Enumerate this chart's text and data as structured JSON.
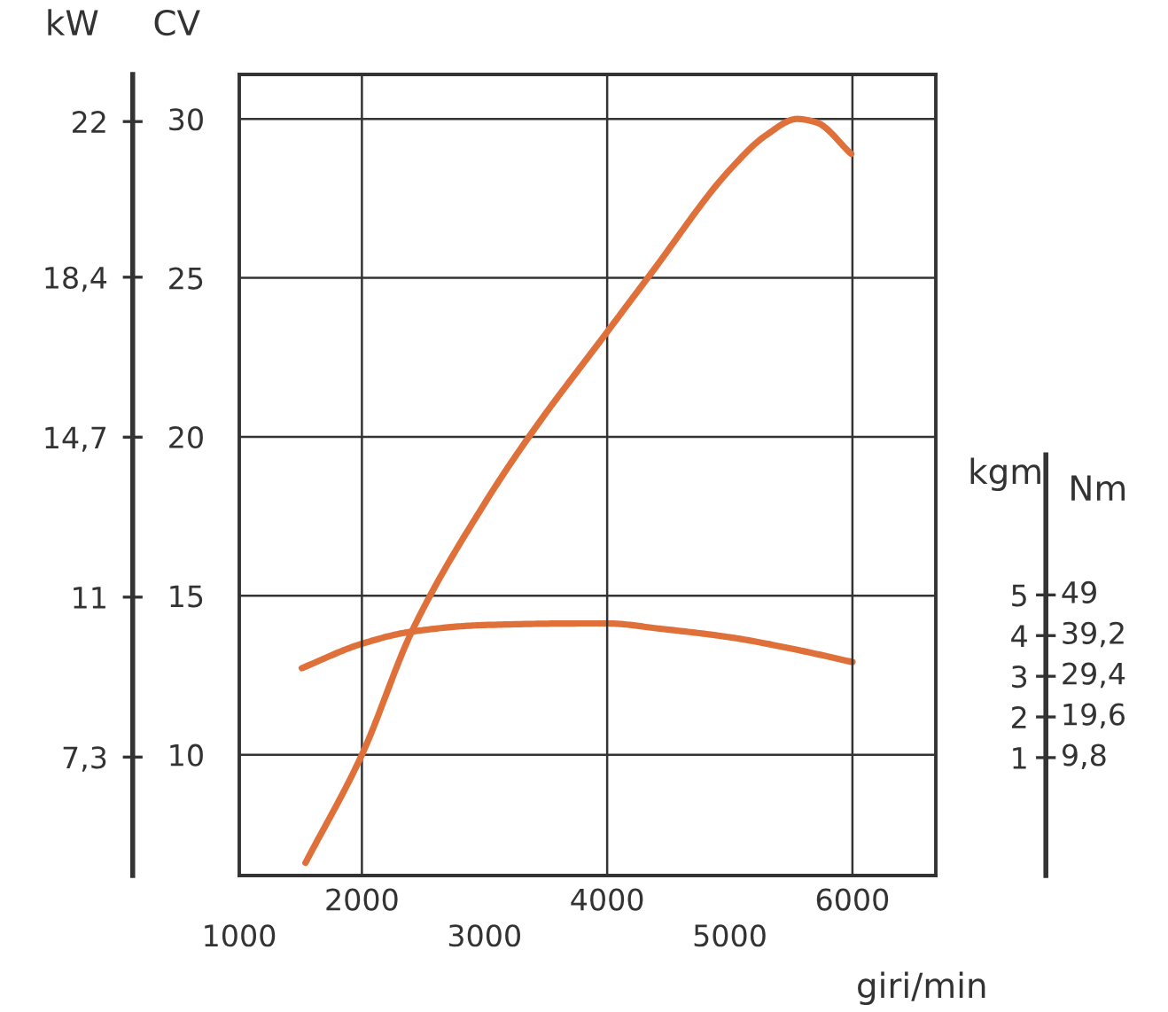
{
  "chart_data": {
    "type": "line",
    "xlabel": "giri/min",
    "ylabel": "CV",
    "y2label": "kW",
    "y3label": "kgm",
    "xlim": [
      1000,
      6680
    ],
    "xticks": [
      2000,
      4000,
      6000
    ],
    "x2lim": [
      1000,
      6680
    ],
    "x2ticks": [
      1000,
      3000,
      5000
    ],
    "ylim": [
      6.2,
      31.4
    ],
    "yticks": [
      10,
      15,
      20,
      25,
      30
    ],
    "y2lim": [
      4.56,
      23.09
    ],
    "y2ticks": [
      {
        "value": 7.3,
        "label": "7,3"
      },
      11,
      {
        "value": 14.7,
        "label": "14,7"
      },
      {
        "value": 18.4,
        "label": "18,4"
      },
      22
    ],
    "y3lim": [
      -1.9,
      17.8
    ],
    "y3ticks": [
      1,
      2,
      3,
      4,
      5
    ],
    "annotations": [
      "Nm",
      "9,8",
      "19,6",
      "29,4",
      "39,2",
      "49"
    ],
    "grid": true,
    "line_style": "solid",
    "series": [
      {
        "axis": "y",
        "color": "#e0703a",
        "x": [
          1540,
          2000,
          2410,
          3000,
          3380,
          4000,
          4350,
          5000,
          5300,
          5550,
          5700,
          5990
        ],
        "values": [
          6.6,
          10.0,
          13.9,
          17.9,
          20.1,
          23.3,
          25.1,
          28.4,
          29.5,
          30.0,
          29.9,
          28.9
        ]
      },
      {
        "axis": "y3",
        "color": "#e0703a",
        "x": [
          1510,
          2000,
          2410,
          3000,
          3810,
          4000,
          4430,
          5000,
          5550,
          6000
        ],
        "values": [
          3.2,
          3.8,
          4.1,
          4.26,
          4.3,
          4.3,
          4.17,
          3.96,
          3.65,
          3.35
        ]
      }
    ]
  }
}
